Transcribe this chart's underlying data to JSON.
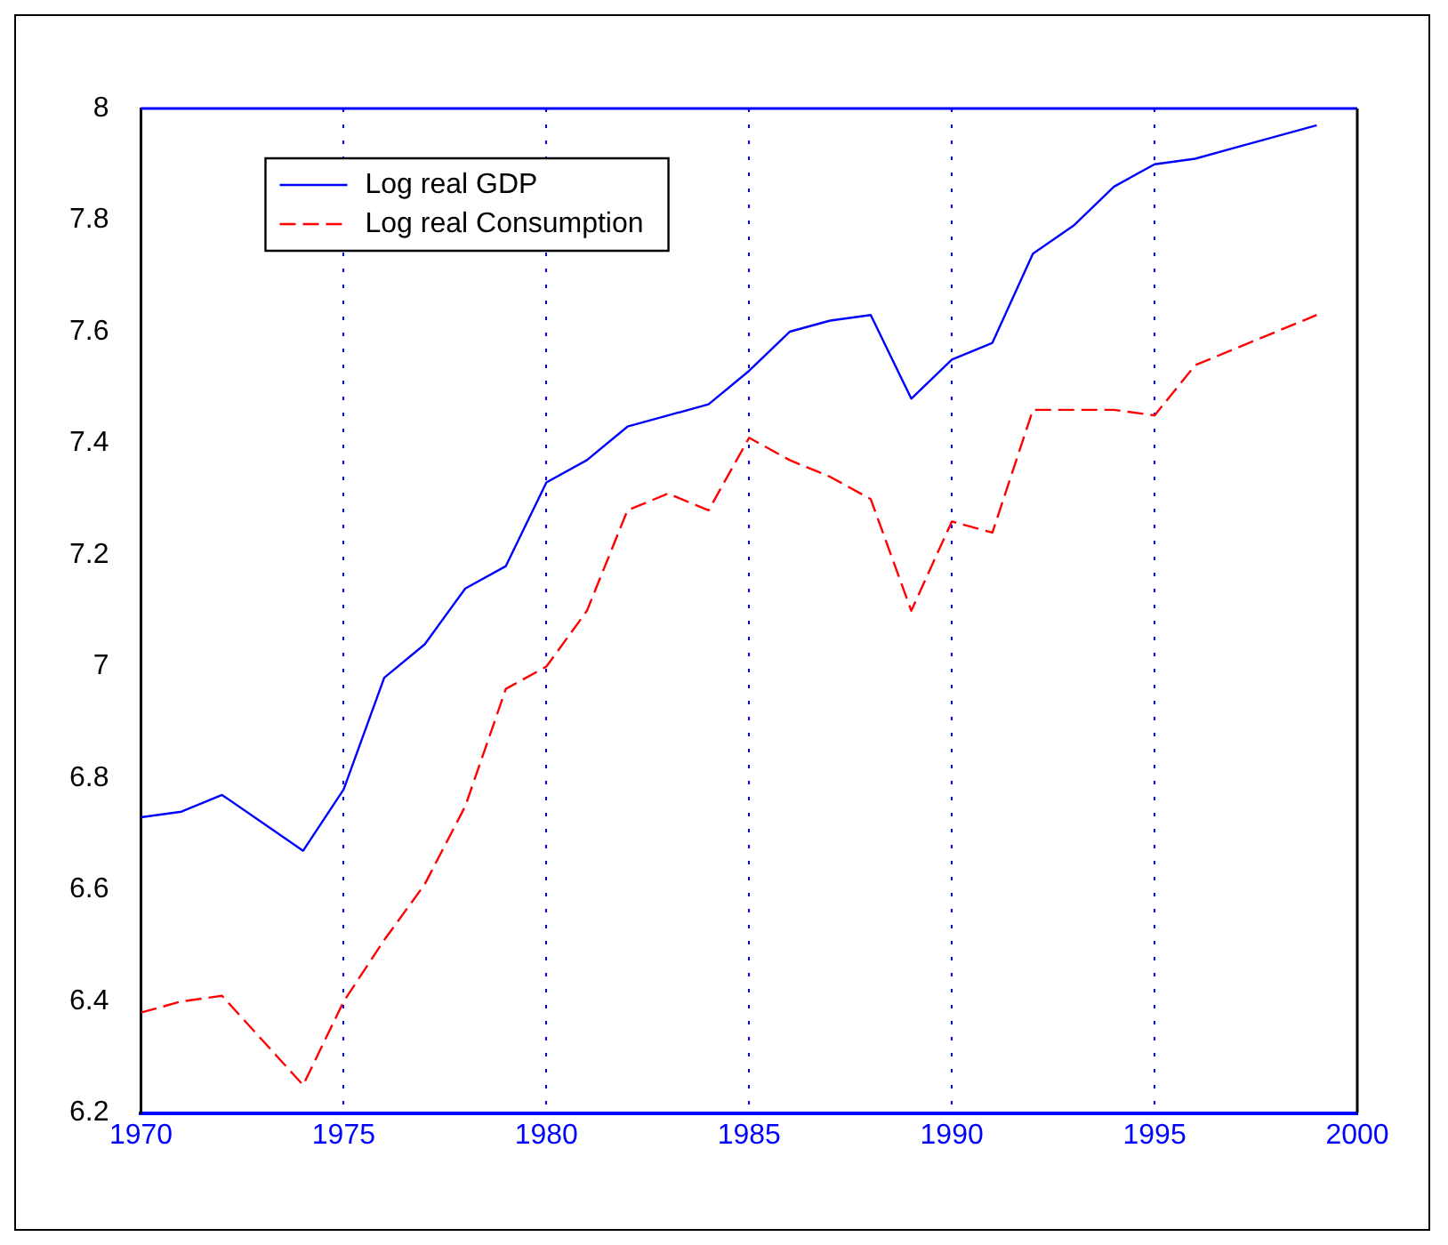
{
  "chart_data": {
    "type": "line",
    "x": [
      1970,
      1971,
      1972,
      1973,
      1974,
      1975,
      1976,
      1977,
      1978,
      1979,
      1980,
      1981,
      1982,
      1983,
      1984,
      1985,
      1986,
      1987,
      1988,
      1989,
      1990,
      1991,
      1992,
      1993,
      1994,
      1995,
      1996,
      1997,
      1998,
      1999
    ],
    "series": [
      {
        "name": "Log real GDP",
        "color": "#0000ff",
        "line_style": "solid",
        "values": [
          6.73,
          6.74,
          6.77,
          6.72,
          6.67,
          6.78,
          6.98,
          7.04,
          7.14,
          7.18,
          7.33,
          7.37,
          7.43,
          7.45,
          7.47,
          7.53,
          7.6,
          7.62,
          7.63,
          7.48,
          7.55,
          7.58,
          7.74,
          7.79,
          7.86,
          7.9,
          7.91,
          7.93,
          7.95,
          7.97
        ]
      },
      {
        "name": "Log real Consumption",
        "color": "#ff0000",
        "line_style": "dashed",
        "values": [
          6.38,
          6.4,
          6.41,
          6.33,
          6.25,
          6.4,
          6.51,
          6.61,
          6.75,
          6.96,
          7.0,
          7.1,
          7.28,
          7.31,
          7.28,
          7.41,
          7.37,
          7.34,
          7.3,
          7.1,
          7.26,
          7.24,
          7.46,
          7.46,
          7.46,
          7.45,
          7.54,
          7.57,
          7.6,
          7.63
        ]
      }
    ],
    "xlim": [
      1970,
      2000
    ],
    "xticks": [
      1970,
      1975,
      1980,
      1985,
      1990,
      1995,
      2000
    ],
    "ylim": [
      6.2,
      8
    ],
    "yticks": [
      6.2,
      6.4,
      6.6,
      6.8,
      7,
      7.2,
      7.4,
      7.6,
      7.8,
      8
    ],
    "grid": "x",
    "legend": "top left",
    "marker": "none"
  }
}
